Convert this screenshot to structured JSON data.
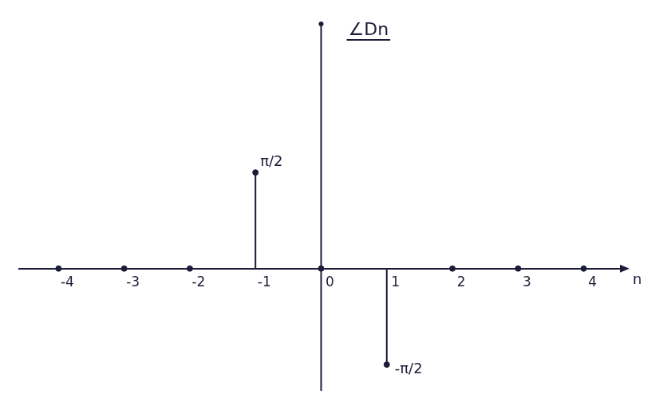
{
  "chart_data": {
    "type": "stem",
    "title": "∠Dn",
    "x_label": "n",
    "x": [
      -4,
      -3,
      -2,
      -1,
      0,
      1,
      2,
      3,
      4
    ],
    "values": [
      0,
      0,
      0,
      1.5708,
      0,
      -1.5708,
      0,
      0,
      0
    ],
    "color": "#1c1c3a",
    "xlim": [
      -4.6,
      4.6
    ],
    "xticks": [
      -4,
      -3,
      -2,
      -1,
      0,
      1,
      2,
      3,
      4
    ],
    "ylim": [
      -2,
      4
    ],
    "yticks": [],
    "tick_labels": "x",
    "grid": false,
    "annotations": [
      {
        "x": -1,
        "y": 1.5708,
        "text": "π/2"
      },
      {
        "x": 1,
        "y": -1.5708,
        "text": "-π/2"
      }
    ]
  }
}
